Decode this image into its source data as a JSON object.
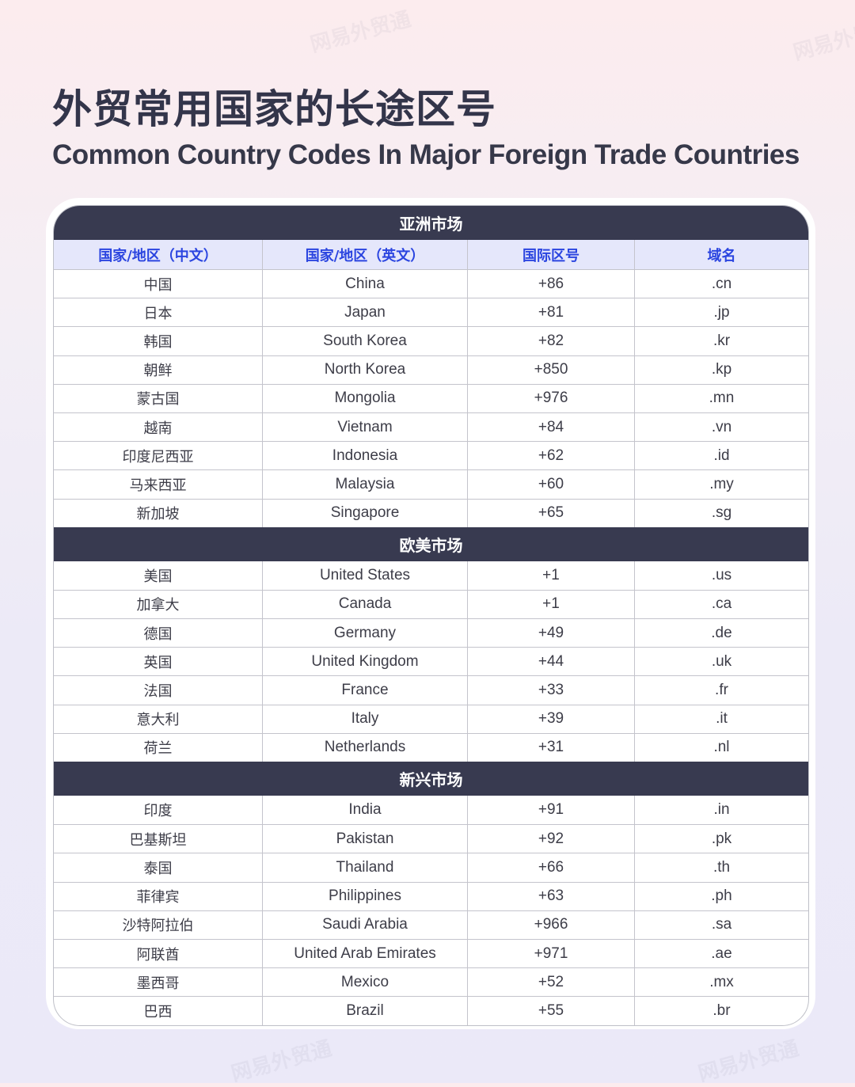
{
  "watermark": "网易外贸通",
  "title": "外贸常用国家的长途区号",
  "subtitle": "Common Country Codes In Major Foreign Trade Countries",
  "columns": [
    "国家/地区（中文）",
    "国家/地区（英文）",
    "国际区号",
    "域名"
  ],
  "sections": [
    {
      "name": "亚洲市场",
      "rows": [
        [
          "中国",
          "China",
          "+86",
          ".cn"
        ],
        [
          "日本",
          "Japan",
          "+81",
          ".jp"
        ],
        [
          "韩国",
          "South Korea",
          "+82",
          ".kr"
        ],
        [
          "朝鲜",
          "North Korea",
          "+850",
          ".kp"
        ],
        [
          "蒙古国",
          "Mongolia",
          "+976",
          ".mn"
        ],
        [
          "越南",
          "Vietnam",
          "+84",
          ".vn"
        ],
        [
          "印度尼西亚",
          "Indonesia",
          "+62",
          ".id"
        ],
        [
          "马来西亚",
          "Malaysia",
          "+60",
          ".my"
        ],
        [
          "新加坡",
          "Singapore",
          "+65",
          ".sg"
        ]
      ]
    },
    {
      "name": "欧美市场",
      "rows": [
        [
          "美国",
          "United States",
          "+1",
          ".us"
        ],
        [
          "加拿大",
          "Canada",
          "+1",
          ".ca"
        ],
        [
          "德国",
          "Germany",
          "+49",
          ".de"
        ],
        [
          "英国",
          "United Kingdom",
          "+44",
          ".uk"
        ],
        [
          "法国",
          "France",
          "+33",
          ".fr"
        ],
        [
          "意大利",
          "Italy",
          "+39",
          ".it"
        ],
        [
          "荷兰",
          "Netherlands",
          "+31",
          ".nl"
        ]
      ]
    },
    {
      "name": "新兴市场",
      "rows": [
        [
          "印度",
          "India",
          "+91",
          ".in"
        ],
        [
          "巴基斯坦",
          "Pakistan",
          "+92",
          ".pk"
        ],
        [
          "泰国",
          "Thailand",
          "+66",
          ".th"
        ],
        [
          "菲律宾",
          "Philippines",
          "+63",
          ".ph"
        ],
        [
          "沙特阿拉伯",
          "Saudi Arabia",
          "+966",
          ".sa"
        ],
        [
          "阿联酋",
          "United Arab Emirates",
          "+971",
          ".ae"
        ],
        [
          "墨西哥",
          "Mexico",
          "+52",
          ".mx"
        ],
        [
          "巴西",
          "Brazil",
          "+55",
          ".br"
        ]
      ]
    }
  ]
}
